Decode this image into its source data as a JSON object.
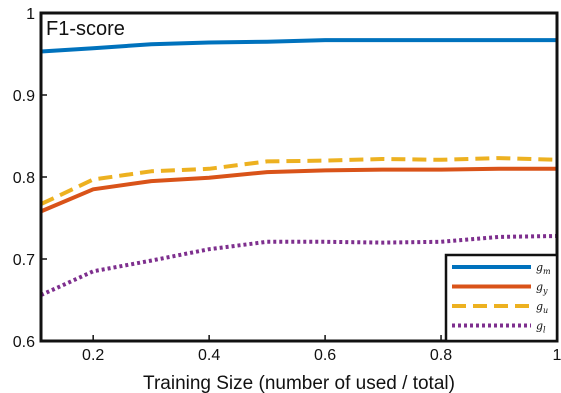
{
  "chart_data": {
    "type": "line",
    "title": "F1-score",
    "xlabel": "Training Size (number of used / total)",
    "ylabel": "",
    "xlim": [
      0.11,
      1.0
    ],
    "ylim": [
      0.6,
      1.0
    ],
    "xticks": [
      0.2,
      0.4,
      0.6,
      0.8,
      1.0
    ],
    "xtick_labels": [
      "0.2",
      "0.4",
      "0.6",
      "0.8",
      "1"
    ],
    "yticks": [
      0.6,
      0.7,
      0.8,
      0.9,
      1.0
    ],
    "ytick_labels": [
      "0.6",
      "0.7",
      "0.8",
      "0.9",
      "1"
    ],
    "grid": false,
    "legend_position": "bottom-right",
    "x": [
      0.11,
      0.2,
      0.3,
      0.4,
      0.5,
      0.6,
      0.7,
      0.8,
      0.9,
      1.0
    ],
    "series": [
      {
        "name": "g_m",
        "label_base": "g",
        "label_sub": "m",
        "color": "#0072BD",
        "dash": "solid",
        "values": [
          0.953,
          0.957,
          0.962,
          0.964,
          0.965,
          0.967,
          0.967,
          0.967,
          0.967,
          0.967
        ]
      },
      {
        "name": "g_y",
        "label_base": "g",
        "label_sub": "y",
        "color": "#D95319",
        "dash": "solid",
        "values": [
          0.758,
          0.785,
          0.795,
          0.799,
          0.806,
          0.808,
          0.809,
          0.809,
          0.81,
          0.81
        ]
      },
      {
        "name": "g_u",
        "label_base": "g",
        "label_sub": "u",
        "color": "#EDB120",
        "dash": "dashed",
        "values": [
          0.767,
          0.797,
          0.807,
          0.81,
          0.819,
          0.82,
          0.822,
          0.821,
          0.823,
          0.821
        ]
      },
      {
        "name": "g_l",
        "label_base": "g",
        "label_sub": "l",
        "color": "#7E2F8E",
        "dash": "dotted",
        "values": [
          0.656,
          0.685,
          0.698,
          0.712,
          0.721,
          0.721,
          0.72,
          0.721,
          0.727,
          0.728
        ]
      }
    ]
  }
}
